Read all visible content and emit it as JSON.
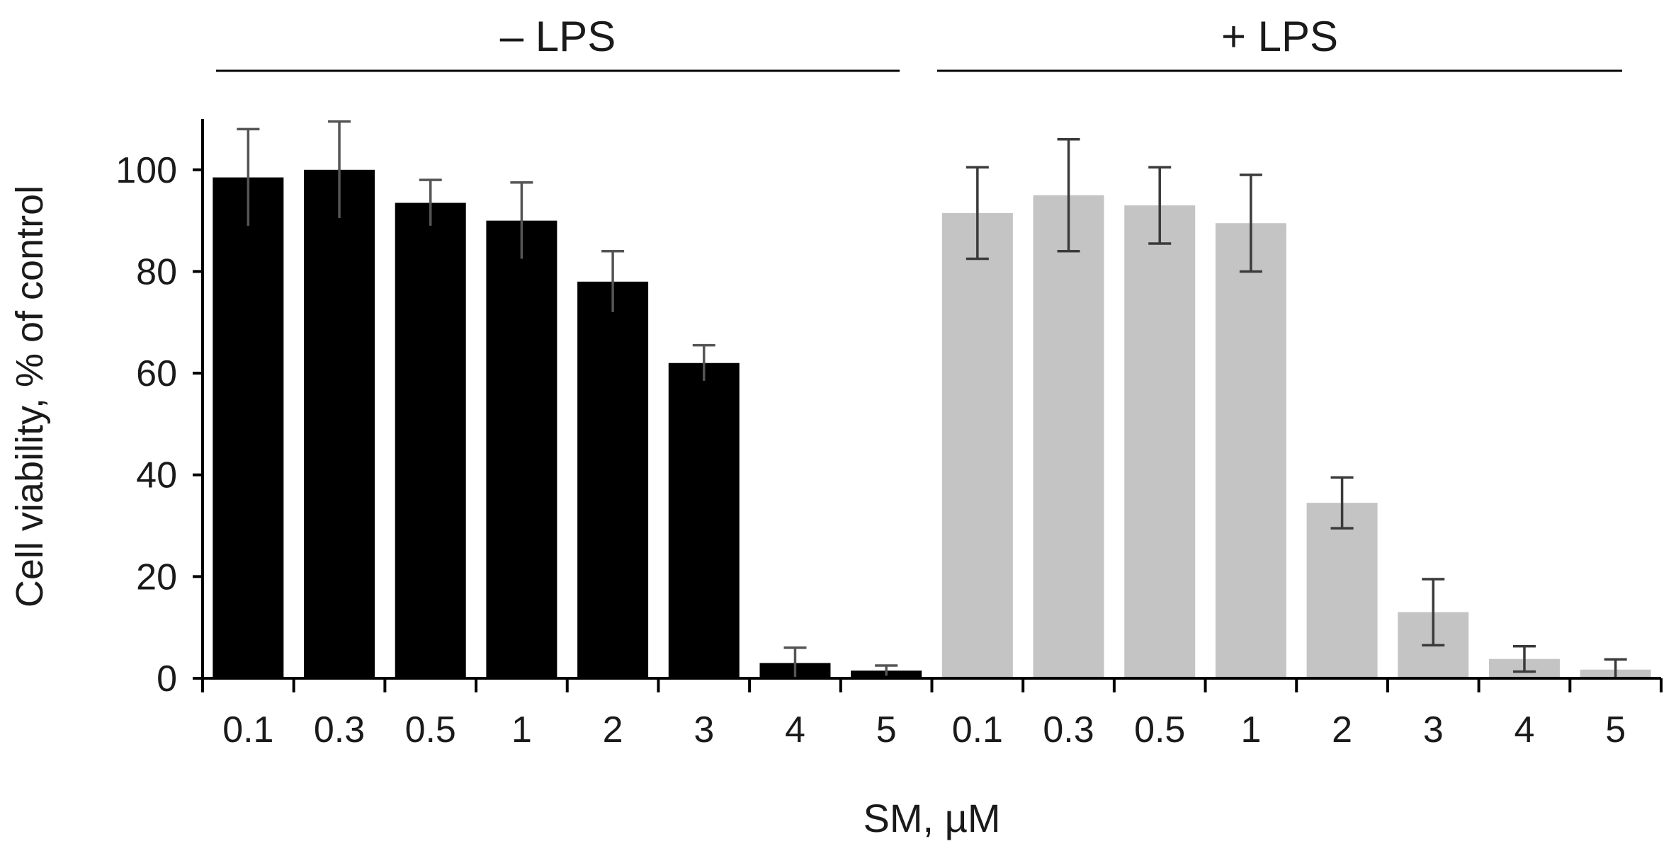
{
  "chart_data": {
    "type": "bar",
    "xlabel": "SM, µM",
    "ylabel": "Cell viability, % of control",
    "ylim": [
      0,
      110
    ],
    "yticks": [
      0,
      20,
      40,
      60,
      80,
      100
    ],
    "grid": false,
    "legend": "none",
    "groups": [
      {
        "label": "– LPS",
        "color": "#000000",
        "error_color": "#555555",
        "categories": [
          "0.1",
          "0.3",
          "0.5",
          "1",
          "2",
          "3",
          "4",
          "5"
        ],
        "values": [
          98.5,
          100,
          93.5,
          90,
          78,
          62,
          3,
          1.5
        ],
        "errors": [
          9.5,
          9.5,
          4.5,
          7.5,
          6,
          3.5,
          3,
          1
        ]
      },
      {
        "label": "+ LPS",
        "color": "#c4c4c4",
        "error_color": "#3a3a3a",
        "categories": [
          "0.1",
          "0.3",
          "0.5",
          "1",
          "2",
          "3",
          "4",
          "5"
        ],
        "values": [
          91.5,
          95,
          93,
          89.5,
          34.5,
          13,
          3.8,
          1.7
        ],
        "errors": [
          9,
          11,
          7.5,
          9.5,
          5,
          6.5,
          2.5,
          2
        ]
      }
    ]
  }
}
